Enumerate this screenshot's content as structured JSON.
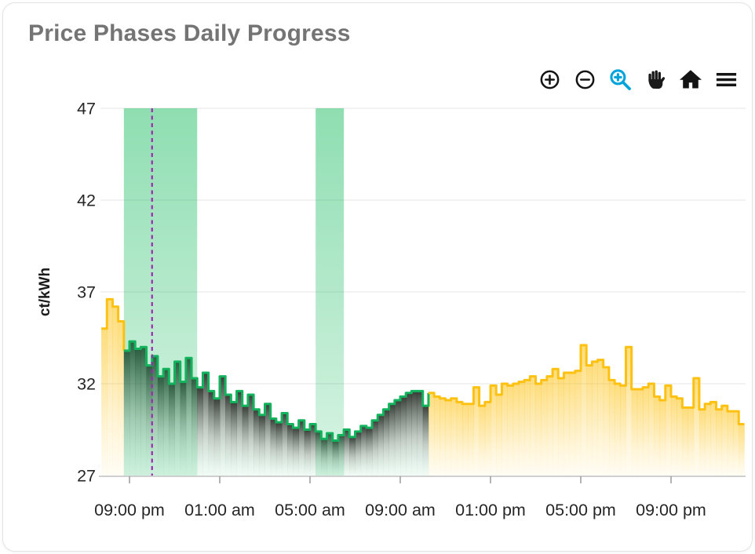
{
  "card": {
    "title": "Price Phases Daily Progress"
  },
  "toolbar": {
    "buttons": [
      {
        "id": "zoom-in",
        "label": "Zoom in"
      },
      {
        "id": "zoom-out",
        "label": "Zoom out"
      },
      {
        "id": "box-zoom",
        "label": "Box zoom",
        "active": true,
        "active_color": "#00A3DC"
      },
      {
        "id": "pan",
        "label": "Pan"
      },
      {
        "id": "reset",
        "label": "Reset view"
      },
      {
        "id": "menu",
        "label": "Menu"
      }
    ]
  },
  "chart_data": {
    "type": "step-area",
    "title": "Price Phases Daily Progress",
    "xlabel": "",
    "ylabel": "ct/kWh",
    "ylim": [
      27,
      47
    ],
    "y_ticks": [
      27,
      32,
      37,
      42,
      47
    ],
    "x_ticks": [
      {
        "hour": 21,
        "label": "09:00 pm"
      },
      {
        "hour": 25,
        "label": "01:00 am"
      },
      {
        "hour": 29,
        "label": "05:00 am"
      },
      {
        "hour": 33,
        "label": "09:00 am"
      },
      {
        "hour": 37,
        "label": "01:00 pm"
      },
      {
        "hour": 41,
        "label": "05:00 pm"
      },
      {
        "hour": 45,
        "label": "09:00 pm"
      }
    ],
    "x_start_hour": 19.75,
    "x_end_hour": 48.25,
    "step_hours": 0.25,
    "grid": "horizontal",
    "legend": "none",
    "values": [
      35.0,
      36.6,
      36.2,
      35.4,
      33.8,
      34.3,
      33.9,
      34.0,
      33.0,
      33.5,
      32.4,
      32.8,
      32.0,
      33.2,
      32.1,
      33.4,
      32.3,
      31.8,
      32.6,
      31.6,
      31.2,
      32.4,
      31.4,
      31.0,
      31.6,
      30.8,
      31.4,
      30.6,
      30.3,
      30.9,
      30.1,
      29.9,
      30.4,
      29.8,
      29.6,
      30.0,
      29.5,
      29.8,
      29.4,
      29.0,
      29.3,
      28.9,
      29.2,
      29.5,
      29.1,
      29.4,
      29.7,
      29.6,
      30.0,
      30.3,
      30.6,
      30.9,
      31.1,
      31.3,
      31.5,
      31.6,
      31.6,
      30.8,
      31.5,
      31.3,
      31.2,
      31.1,
      31.2,
      31.0,
      30.9,
      30.9,
      31.8,
      30.8,
      31.0,
      31.9,
      31.4,
      32.0,
      31.9,
      32.0,
      32.1,
      32.2,
      32.4,
      32.0,
      32.2,
      32.4,
      32.8,
      32.3,
      32.6,
      32.6,
      32.7,
      34.1,
      33.0,
      33.2,
      33.3,
      32.9,
      32.2,
      32.0,
      31.9,
      34.0,
      31.7,
      31.7,
      31.8,
      32.0,
      31.3,
      31.1,
      31.9,
      31.3,
      31.2,
      30.7,
      30.7,
      32.3,
      30.6,
      30.9,
      31.0,
      30.6,
      30.8,
      30.5,
      30.5,
      29.8
    ],
    "segments": [
      {
        "id": "yellow-segment-start",
        "line_color": "#FDC112",
        "fill": "yellow-gradient",
        "start_index": 0,
        "end_index": 4
      },
      {
        "id": "green-segment",
        "line_color": "#12B35C",
        "fill": "dark-gradient",
        "start_index": 4,
        "end_index": 58
      },
      {
        "id": "yellow-segment-day",
        "line_color": "#FDC112",
        "fill": "yellow-gradient",
        "start_index": 58,
        "end_index": 114
      }
    ],
    "highlight_bands": [
      {
        "start_hour": 20.75,
        "end_hour": 24.0,
        "color": "#10B95A"
      },
      {
        "start_hour": 29.25,
        "end_hour": 30.5,
        "color": "#10B95A"
      }
    ],
    "now_line": {
      "hour": 22.0,
      "color": "#9C27B0",
      "style": "dashed"
    },
    "colors": {
      "yellow_line": "#FDC112",
      "green_line": "#12B35C",
      "band_green": "#10B95A",
      "now_purple": "#9C27B0",
      "axis_line": "#cfcfcf",
      "grid_line": "#ededed",
      "tick_text": "#262626",
      "title_gray": "#747474"
    }
  }
}
